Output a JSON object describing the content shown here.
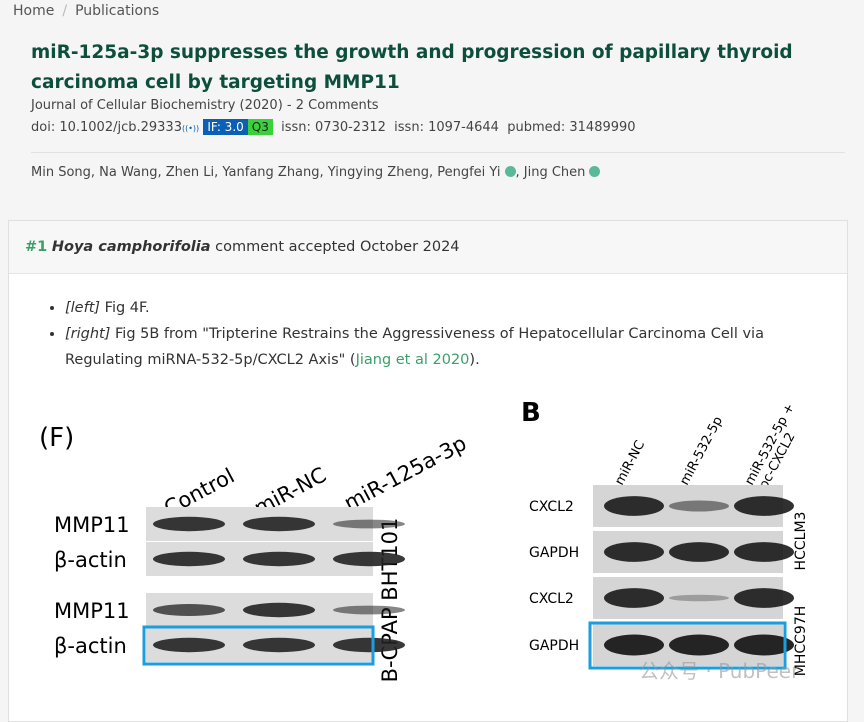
{
  "breadcrumb": [
    "Home",
    "Publications"
  ],
  "publication": {
    "title": "miR‐125a‐3p suppresses the growth and progression of papillary thyroid carcinoma cell by targeting MMP11",
    "journal": "Journal of Cellular Biochemistry (2020) - 2 Comments",
    "doi": "doi: 10.1002/jcb.29333",
    "impact_factor": "IF: 3.0",
    "quartile": "Q3",
    "issn_print": "issn: 0730-2312",
    "issn_online": "issn: 1097-4644",
    "pubmed": "pubmed: 31489990",
    "authors": [
      {
        "name": "Min Song",
        "verified": false
      },
      {
        "name": "Na Wang",
        "verified": false
      },
      {
        "name": "Zhen Li",
        "verified": false
      },
      {
        "name": "Yanfang Zhang",
        "verified": false
      },
      {
        "name": "Yingying Zheng",
        "verified": false
      },
      {
        "name": "Pengfei Yi",
        "verified": true
      },
      {
        "name": "Jing Chen",
        "verified": true
      }
    ]
  },
  "comment": {
    "number": "#1",
    "author": "Hoya camphorifolia",
    "status": "comment accepted October 2024",
    "items": [
      {
        "tag": "[left]",
        "text": " Fig 4F."
      },
      {
        "tag": "[right]",
        "text": " Fig 5B from \"Tripterine Restrains the Aggressiveness of Hepatocellular Carcinoma Cell via Regulating miRNA-532-5p/CXCL2 Axis\" (",
        "link": "Jiang et al 2020",
        "after": ")."
      }
    ]
  },
  "figure_left": {
    "panel": "(F)",
    "lanes": [
      "Control",
      "miR-NC",
      "miR-125a-3p"
    ],
    "rows": [
      "MMP11",
      "β-actin",
      "MMP11",
      "β-actin"
    ],
    "cell_line": "B-CPAP BHT101"
  },
  "figure_right": {
    "panel": "B",
    "lanes": [
      [
        "miR-NC"
      ],
      [
        "miR-532-5p"
      ],
      [
        "miR-532-5p +",
        "pc-CXCL2"
      ]
    ],
    "rows": [
      "CXCL2",
      "GAPDH",
      "CXCL2",
      "GAPDH"
    ],
    "cell_lines": [
      "HCCLM3",
      "MHCC97H"
    ]
  },
  "watermark": "公众号 · PubPeer"
}
